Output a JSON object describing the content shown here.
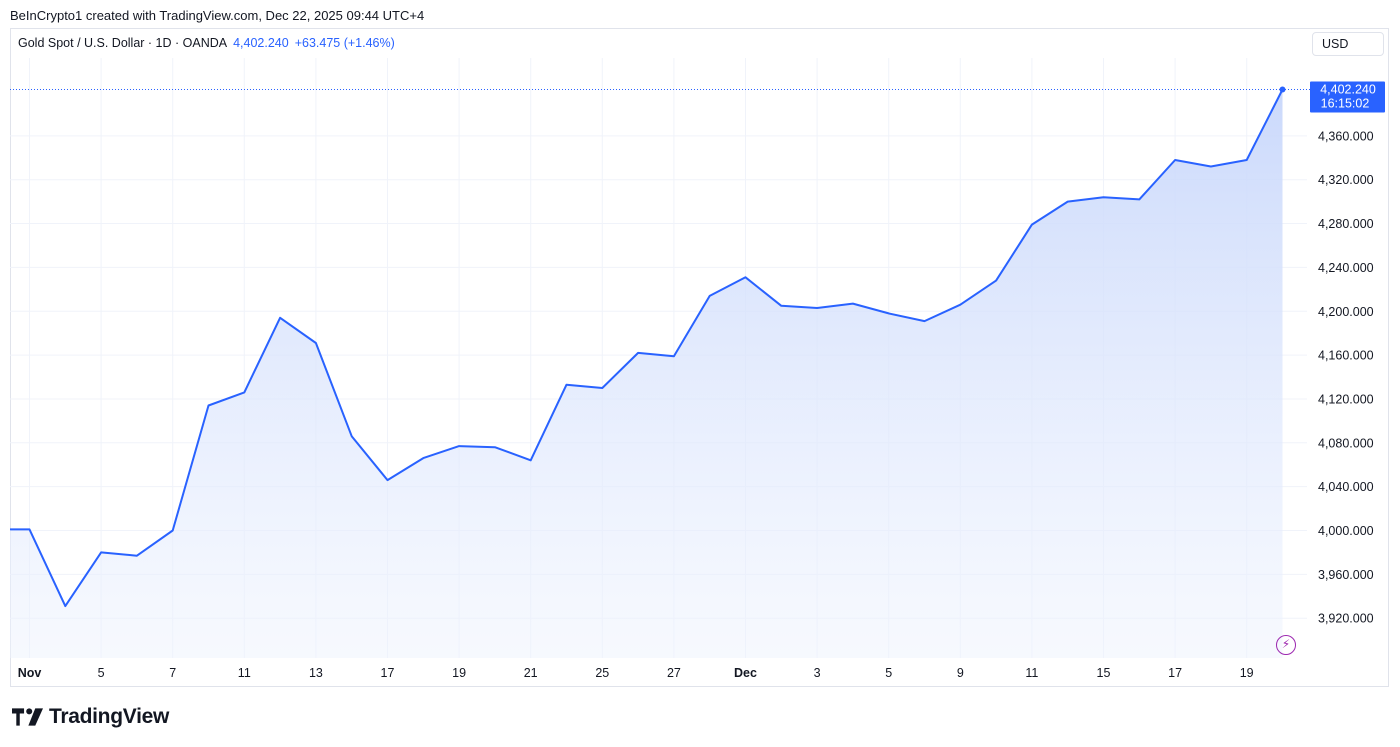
{
  "header": {
    "text": "BeInCrypto1 created with TradingView.com, Dec 22, 2025 09:44 UTC+4"
  },
  "legend": {
    "symbol": "Gold Spot / U.S. Dollar · 1D · OANDA",
    "price": "4,402.240",
    "change": "+63.475 (+1.46%)"
  },
  "currency_button": "USD",
  "footer": {
    "brand": "TradingView"
  },
  "colors": {
    "line": "#2962ff",
    "fill_top": "#c5d5fb",
    "grid": "#f0f3fa",
    "text": "#131722"
  },
  "chart_data": {
    "type": "area",
    "symbol": "Gold Spot / U.S. Dollar",
    "ylim": [
      3880,
      4420
    ],
    "yticks": [
      3920,
      3960,
      4000,
      4040,
      4080,
      4120,
      4160,
      4200,
      4240,
      4280,
      4320,
      4360
    ],
    "ytick_labels": [
      "3,920.000",
      "3,960.000",
      "4,000.000",
      "4,040.000",
      "4,080.000",
      "4,120.000",
      "4,160.000",
      "4,200.000",
      "4,240.000",
      "4,280.000",
      "4,320.000",
      "4,360.000"
    ],
    "x_labels": [
      {
        "i": 0,
        "label": "Nov",
        "bold": true
      },
      {
        "i": 2,
        "label": "5"
      },
      {
        "i": 4,
        "label": "7"
      },
      {
        "i": 6,
        "label": "11"
      },
      {
        "i": 8,
        "label": "13"
      },
      {
        "i": 10,
        "label": "17"
      },
      {
        "i": 12,
        "label": "19"
      },
      {
        "i": 14,
        "label": "21"
      },
      {
        "i": 16,
        "label": "25"
      },
      {
        "i": 18,
        "label": "27"
      },
      {
        "i": 20,
        "label": "Dec",
        "bold": true
      },
      {
        "i": 22,
        "label": "3"
      },
      {
        "i": 24,
        "label": "5"
      },
      {
        "i": 26,
        "label": "9"
      },
      {
        "i": 28,
        "label": "11"
      },
      {
        "i": 30,
        "label": "15"
      },
      {
        "i": 32,
        "label": "17"
      },
      {
        "i": 34,
        "label": "19"
      }
    ],
    "values": [
      4001,
      4001,
      3931,
      3980,
      3977,
      4000,
      4114,
      4126,
      4194,
      4171,
      4086,
      4046,
      4066,
      4077,
      4076,
      4064,
      4133,
      4130,
      4162,
      4159,
      4214,
      4231,
      4205,
      4203,
      4207,
      4198,
      4191,
      4206,
      4228,
      4279,
      4300,
      4304,
      4302,
      4338,
      4332,
      4338,
      4402.24
    ],
    "last_value_label": "4,402.240",
    "countdown_label": "16:15:02",
    "grid": true
  }
}
